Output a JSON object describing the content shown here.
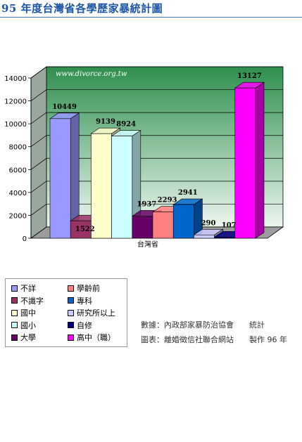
{
  "title": "95 年度台灣省各學歷家暴統計圖",
  "chart_data": {
    "type": "bar",
    "watermark": "www.divorce.org.tw",
    "categories": [
      "台灣省"
    ],
    "ylim": [
      0,
      14000
    ],
    "yticks": [
      0,
      2000,
      4000,
      6000,
      8000,
      10000,
      12000,
      14000
    ],
    "ytick_labels": [
      "0",
      "2000",
      "4000",
      "6000",
      "8000",
      "10000",
      "12000",
      "14000"
    ],
    "grid": true,
    "legend_position": "bottom-left",
    "series": [
      {
        "name": "不詳",
        "values": [
          10449
        ],
        "color": "#9999ff"
      },
      {
        "name": "不識字",
        "values": [
          1522
        ],
        "color": "#993366"
      },
      {
        "name": "國中",
        "values": [
          9139
        ],
        "color": "#ffffcc"
      },
      {
        "name": "國小",
        "values": [
          8924
        ],
        "color": "#ccffff"
      },
      {
        "name": "大學",
        "values": [
          1937
        ],
        "color": "#660066"
      },
      {
        "name": "學齡前",
        "values": [
          2293
        ],
        "color": "#ff8080"
      },
      {
        "name": "專科",
        "values": [
          2941
        ],
        "color": "#0066cc"
      },
      {
        "name": "研究所以上",
        "values": [
          290
        ],
        "color": "#ccccff"
      },
      {
        "name": "自修",
        "values": [
          107
        ],
        "color": "#000080"
      },
      {
        "name": "高中（職）",
        "values": [
          13127
        ],
        "color": "#ff00ff"
      }
    ],
    "wall_colors": {
      "top": "#2f8f4f",
      "bottom": "#ecf6ee"
    }
  },
  "footnotes": {
    "source": "數據：內政部家暴防治協會　　統計",
    "credit": "圖表：離婚徵信社聯合網站　　製作 96 年"
  }
}
